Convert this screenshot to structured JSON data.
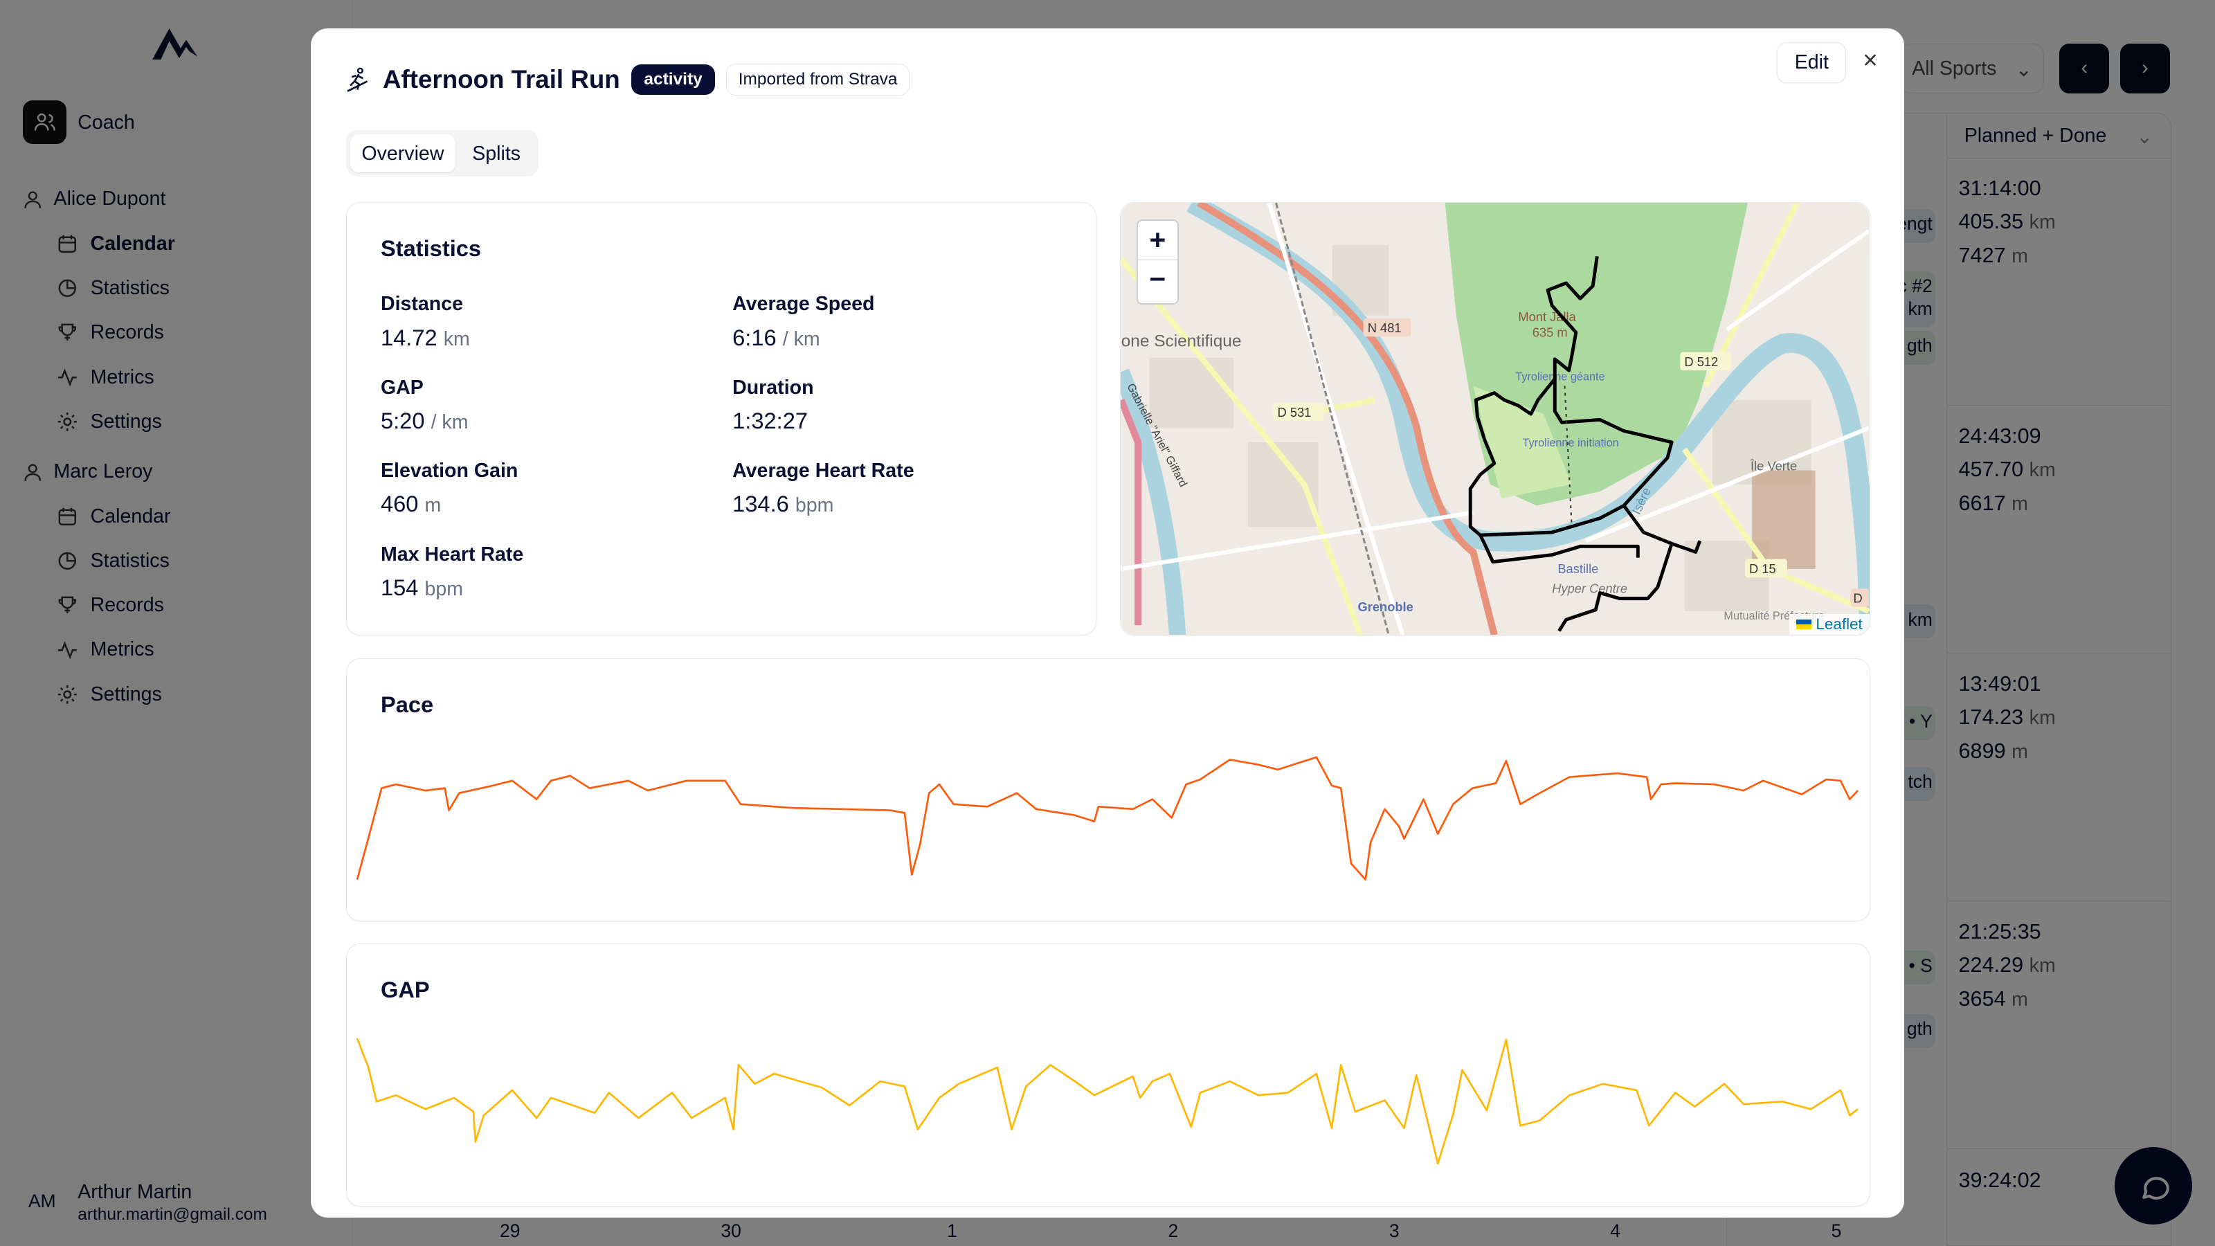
{
  "sidebar": {
    "coach_label": "Coach",
    "athletes": [
      {
        "name": "Alice Dupont",
        "items": [
          {
            "label": "Calendar",
            "icon": "calendar-icon",
            "active": true
          },
          {
            "label": "Statistics",
            "icon": "pie-chart-icon"
          },
          {
            "label": "Records",
            "icon": "trophy-icon"
          },
          {
            "label": "Metrics",
            "icon": "activity-icon"
          },
          {
            "label": "Settings",
            "icon": "gear-icon"
          }
        ]
      },
      {
        "name": "Marc Leroy",
        "items": [
          {
            "label": "Calendar",
            "icon": "calendar-icon"
          },
          {
            "label": "Statistics",
            "icon": "pie-chart-icon"
          },
          {
            "label": "Records",
            "icon": "trophy-icon"
          },
          {
            "label": "Metrics",
            "icon": "activity-icon"
          },
          {
            "label": "Settings",
            "icon": "gear-icon"
          }
        ]
      }
    ],
    "user": {
      "initials": "AM",
      "name": "Arthur Martin",
      "email": "arthur.martin@gmail.com"
    }
  },
  "calendar": {
    "sport_filter": "All Sports",
    "summary_header": "Planned + Done",
    "summaries": [
      {
        "duration": "31:14:00",
        "distance": "405.35",
        "distance_unit": "km",
        "elevation": "7427",
        "elevation_unit": "m"
      },
      {
        "duration": "24:43:09",
        "distance": "457.70",
        "distance_unit": "km",
        "elevation": "6617",
        "elevation_unit": "m"
      },
      {
        "duration": "13:49:01",
        "distance": "174.23",
        "distance_unit": "km",
        "elevation": "6899",
        "elevation_unit": "m"
      },
      {
        "duration": "21:25:35",
        "distance": "224.29",
        "distance_unit": "km",
        "elevation": "3654",
        "elevation_unit": "m"
      },
      {
        "duration": "39:24:02"
      }
    ],
    "event_fragments": [
      "engt",
      "c #2",
      "km",
      "gth",
      "km",
      "n • Y",
      "tch",
      "n • S",
      "gth"
    ],
    "days": [
      "29",
      "30",
      "1",
      "2",
      "3",
      "4",
      "5"
    ]
  },
  "modal": {
    "title": "Afternoon Trail Run",
    "type_badge": "activity",
    "source_badge": "Imported from Strava",
    "edit_label": "Edit",
    "close_label": "×",
    "tabs": [
      "Overview",
      "Splits"
    ],
    "active_tab": "Overview",
    "statistics": {
      "title": "Statistics",
      "items": [
        {
          "label": "Distance",
          "value": "14.72",
          "unit": "km"
        },
        {
          "label": "Average Speed",
          "value": "6:16",
          "unit": "/ km"
        },
        {
          "label": "GAP",
          "value": "5:20",
          "unit": "/ km"
        },
        {
          "label": "Duration",
          "value": "1:32:27",
          "unit": ""
        },
        {
          "label": "Elevation Gain",
          "value": "460",
          "unit": "m"
        },
        {
          "label": "Average Heart Rate",
          "value": "134.6",
          "unit": "bpm"
        },
        {
          "label": "Max Heart Rate",
          "value": "154",
          "unit": "bpm"
        }
      ]
    },
    "map": {
      "zoom_in": "+",
      "zoom_out": "−",
      "attribution": "Leaflet",
      "labels": {
        "n481": "N 481",
        "d531": "D 531",
        "d512": "D 512",
        "d15": "D 15",
        "d": "D",
        "zone": "one Scientifique",
        "mont": "Mont Jalla",
        "alt": "635 m",
        "tyro1": "Tyrolienne géante",
        "tyro2": "Tyrolienne initiation",
        "bastille": "Bastille",
        "hyper": "Hyper Centre",
        "grenoble": "Grenoble",
        "ile": "Île Verte",
        "isere": "Isère",
        "giffard": "Gabrielle \"Ariel\" Giffard",
        "mutualite": "Mutualité Préfecture"
      }
    }
  },
  "chart_data": [
    {
      "type": "line",
      "title": "Pace",
      "color": "#ff5a0a",
      "xlabel": "",
      "ylabel": "",
      "ylim": [
        0,
        100
      ],
      "x": [
        0,
        0.14,
        0.24,
        0.38,
        0.67,
        0.86,
        0.9,
        1.0,
        1.33,
        1.52,
        1.76,
        1.9,
        2.09,
        2.28,
        2.66,
        2.85,
        3.23,
        3.61,
        3.76,
        4.28,
        4.75,
        5.23,
        5.37,
        5.44,
        5.52,
        5.61,
        5.71,
        5.85,
        6.18,
        6.47,
        6.66,
        7.04,
        7.23,
        7.27,
        7.61,
        7.8,
        7.99,
        8.13,
        8.27,
        8.56,
        8.84,
        9.03,
        9.41,
        9.56,
        9.65,
        9.75,
        9.89,
        9.94,
        10.08,
        10.22,
        10.27,
        10.46,
        10.6,
        10.75,
        10.94,
        11.17,
        11.27,
        11.41,
        11.6,
        11.89,
        12.36,
        12.65,
        12.69,
        12.79,
        12.93,
        13.31,
        13.6,
        13.79,
        14.17,
        14.41,
        14.55,
        14.64,
        14.72
      ],
      "values": [
        0,
        43,
        74,
        77,
        72,
        74,
        56,
        70,
        76,
        80,
        65,
        80,
        84,
        74,
        80,
        72,
        80,
        80,
        61,
        58,
        57,
        56,
        54,
        4,
        28,
        70,
        77,
        61,
        59,
        70,
        57,
        52,
        47,
        59,
        57,
        65,
        50,
        77,
        81,
        97,
        93,
        89,
        99,
        76,
        74,
        13,
        0,
        30,
        57,
        43,
        33,
        65,
        37,
        61,
        74,
        78,
        96,
        61,
        70,
        83,
        86,
        83,
        65,
        77,
        78,
        77,
        72,
        80,
        69,
        81,
        80,
        65,
        72
      ]
    },
    {
      "type": "line",
      "title": "GAP",
      "color": "#ffb700",
      "xlabel": "",
      "ylabel": "",
      "ylim": [
        0,
        100
      ],
      "x": [
        0,
        0.11,
        0.19,
        0.38,
        0.67,
        0.95,
        1.14,
        1.16,
        1.24,
        1.52,
        1.76,
        1.9,
        2.33,
        2.47,
        2.76,
        3.09,
        3.28,
        3.61,
        3.69,
        3.74,
        3.9,
        4.09,
        4.56,
        4.83,
        5.13,
        5.37,
        5.5,
        5.71,
        5.9,
        6.28,
        6.42,
        6.56,
        6.8,
        7.04,
        7.23,
        7.61,
        7.68,
        7.8,
        7.97,
        8.18,
        8.27,
        8.56,
        8.84,
        9.13,
        9.41,
        9.56,
        9.65,
        9.79,
        10.08,
        10.27,
        10.39,
        10.6,
        10.75,
        10.84,
        11.08,
        11.27,
        11.41,
        11.6,
        11.89,
        12.22,
        12.55,
        12.67,
        12.93,
        13.12,
        13.41,
        13.6,
        13.98,
        14.26,
        14.55,
        14.64,
        14.72
      ],
      "values": [
        100,
        77,
        50,
        55,
        44,
        53,
        42,
        18,
        39,
        59,
        37,
        53,
        41,
        57,
        37,
        57,
        37,
        53,
        28,
        79,
        64,
        72,
        61,
        47,
        66,
        62,
        28,
        53,
        64,
        77,
        28,
        62,
        79,
        66,
        55,
        70,
        53,
        66,
        72,
        30,
        57,
        66,
        55,
        57,
        72,
        29,
        79,
        42,
        51,
        29,
        71,
        1,
        40,
        75,
        43,
        99,
        31,
        35,
        55,
        64,
        59,
        31,
        57,
        46,
        64,
        48,
        50,
        44,
        59,
        39,
        44
      ]
    }
  ]
}
